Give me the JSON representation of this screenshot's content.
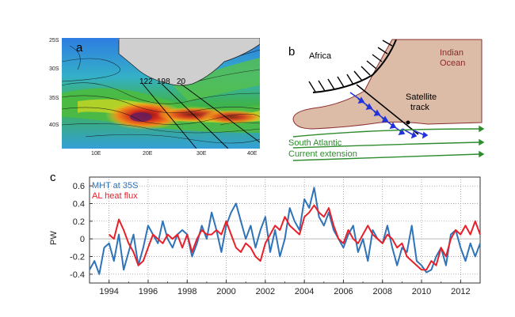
{
  "panel_a": {
    "letter": "a",
    "lat_labels": [
      "25S",
      "30S",
      "35S",
      "40S"
    ],
    "lon_labels": [
      "10E",
      "20E",
      "30E",
      "40E"
    ],
    "track_labels": [
      "122",
      "198",
      "20"
    ]
  },
  "panel_b": {
    "letter": "b",
    "africa": "Africa",
    "ocean_line1": "Indian",
    "ocean_line2": "Ocean",
    "satellite_line1": "Satellite",
    "satellite_line2": "track",
    "current_line1": "South Atlantic",
    "current_line2": "Current extension",
    "colors": {
      "land": "#dcbba7",
      "current": "#2e8b2e",
      "arrows": "#2233dd"
    }
  },
  "panel_c": {
    "letter": "c",
    "chart_data": {
      "type": "line",
      "ylabel": "PW",
      "xlim": [
        1993,
        2013
      ],
      "ylim": [
        -0.5,
        0.7
      ],
      "xticks": [
        "1994",
        "1996",
        "1998",
        "2000",
        "2002",
        "2004",
        "2006",
        "2008",
        "2010",
        "2012"
      ],
      "yticks": [
        "0.6",
        "0.4",
        "0.2",
        "0",
        "-0.2",
        "-0.4"
      ],
      "grid": true,
      "legend": "top-left",
      "series": [
        {
          "name": "MHT at 35S",
          "color": "#2f73b8",
          "x": [
            1993.0,
            1993.25,
            1993.5,
            1993.75,
            1994.0,
            1994.25,
            1994.5,
            1994.75,
            1995.0,
            1995.25,
            1995.5,
            1995.75,
            1996.0,
            1996.25,
            1996.5,
            1996.75,
            1997.0,
            1997.25,
            1997.5,
            1997.75,
            1998.0,
            1998.25,
            1998.5,
            1998.75,
            1999.0,
            1999.25,
            1999.5,
            1999.75,
            2000.0,
            2000.25,
            2000.5,
            2000.75,
            2001.0,
            2001.25,
            2001.5,
            2001.75,
            2002.0,
            2002.25,
            2002.5,
            2002.75,
            2003.0,
            2003.25,
            2003.5,
            2003.75,
            2004.0,
            2004.25,
            2004.5,
            2004.75,
            2005.0,
            2005.25,
            2005.5,
            2005.75,
            2006.0,
            2006.25,
            2006.5,
            2006.75,
            2007.0,
            2007.25,
            2007.5,
            2007.75,
            2008.0,
            2008.25,
            2008.5,
            2008.75,
            2009.0,
            2009.25,
            2009.5,
            2009.75,
            2010.0,
            2010.25,
            2010.5,
            2010.75,
            2011.0,
            2011.25,
            2011.5,
            2011.75,
            2012.0,
            2012.25,
            2012.5,
            2012.75,
            2013.0
          ],
          "y": [
            -0.35,
            -0.25,
            -0.4,
            -0.1,
            -0.05,
            -0.25,
            0.05,
            -0.35,
            -0.15,
            0.05,
            -0.3,
            -0.1,
            0.15,
            0.05,
            -0.05,
            0.2,
            0.0,
            -0.1,
            0.05,
            0.1,
            0.05,
            -0.2,
            -0.05,
            0.15,
            0.0,
            0.3,
            0.1,
            -0.15,
            0.15,
            0.3,
            0.4,
            0.2,
            0.0,
            0.15,
            -0.1,
            0.1,
            0.25,
            -0.15,
            0.1,
            -0.2,
            0.0,
            0.35,
            0.2,
            0.1,
            0.45,
            0.35,
            0.58,
            0.25,
            0.15,
            0.3,
            0.1,
            0.0,
            -0.1,
            0.05,
            0.15,
            -0.15,
            0.0,
            -0.25,
            0.1,
            0.0,
            -0.05,
            0.15,
            -0.1,
            -0.3,
            -0.1,
            -0.15,
            0.15,
            -0.25,
            -0.3,
            -0.38,
            -0.35,
            -0.2,
            -0.1,
            -0.3,
            0.05,
            0.1,
            -0.1,
            -0.25,
            -0.05,
            -0.2,
            -0.05
          ]
        },
        {
          "name": "AL heat flux",
          "color": "#e8202a",
          "x": [
            1994.0,
            1994.25,
            1994.5,
            1994.75,
            1995.0,
            1995.25,
            1995.5,
            1995.75,
            1996.0,
            1996.25,
            1996.5,
            1996.75,
            1997.0,
            1997.25,
            1997.5,
            1997.75,
            1998.0,
            1998.25,
            1998.5,
            1998.75,
            1999.0,
            1999.25,
            1999.5,
            1999.75,
            2000.0,
            2000.25,
            2000.5,
            2000.75,
            2001.0,
            2001.25,
            2001.5,
            2001.75,
            2002.0,
            2002.25,
            2002.5,
            2002.75,
            2003.0,
            2003.25,
            2003.5,
            2003.75,
            2004.0,
            2004.25,
            2004.5,
            2004.75,
            2005.0,
            2005.25,
            2005.5,
            2005.75,
            2006.0,
            2006.25,
            2006.5,
            2006.75,
            2007.0,
            2007.25,
            2007.5,
            2007.75,
            2008.0,
            2008.25,
            2008.5,
            2008.75,
            2009.0,
            2009.25,
            2009.5,
            2009.75,
            2010.0,
            2010.25,
            2010.5,
            2010.75,
            2011.0,
            2011.25,
            2011.5,
            2011.75,
            2012.0,
            2012.25,
            2012.5,
            2012.75,
            2013.0
          ],
          "y": [
            0.05,
            0.0,
            0.22,
            0.1,
            -0.05,
            -0.15,
            -0.3,
            -0.25,
            -0.1,
            0.05,
            0.0,
            -0.05,
            0.05,
            0.0,
            0.05,
            -0.1,
            0.05,
            -0.15,
            0.0,
            0.1,
            0.05,
            0.05,
            0.1,
            0.05,
            0.2,
            0.05,
            -0.1,
            -0.15,
            -0.05,
            -0.1,
            -0.2,
            -0.25,
            -0.05,
            0.05,
            0.15,
            0.1,
            0.25,
            0.15,
            0.1,
            0.05,
            0.25,
            0.3,
            0.38,
            0.3,
            0.25,
            0.35,
            0.15,
            0.0,
            -0.05,
            0.1,
            0.0,
            -0.05,
            0.05,
            0.15,
            0.05,
            0.0,
            -0.05,
            0.05,
            0.0,
            -0.1,
            -0.05,
            -0.2,
            -0.25,
            -0.3,
            -0.35,
            -0.35,
            -0.25,
            -0.3,
            -0.1,
            -0.2,
            0.0,
            0.1,
            0.05,
            0.15,
            0.05,
            0.2,
            0.05
          ]
        }
      ]
    }
  }
}
